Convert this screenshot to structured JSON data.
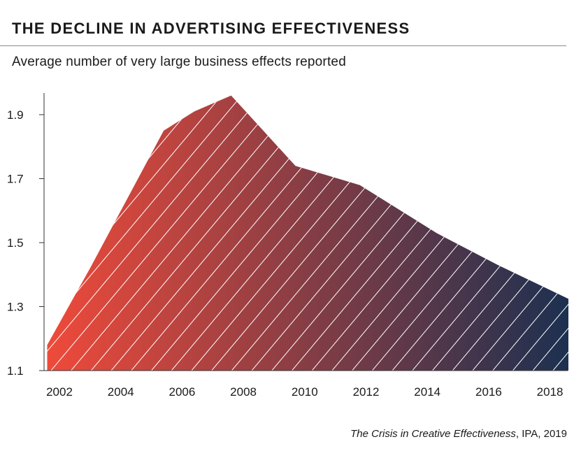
{
  "header": {
    "title": "THE DECLINE IN ADVERTISING EFFECTIVENESS",
    "subtitle": "Average number of very large business effects reported"
  },
  "footer": {
    "source_italic": "The Crisis in Creative Effectiveness",
    "source_rest": ", IPA, 2019"
  },
  "colors": {
    "gradient_start": "#ef4a3a",
    "gradient_end": "#1b3050",
    "hatch": "#ffffff"
  },
  "chart_data": {
    "type": "area",
    "x": [
      2001.6,
      2003,
      2005.4,
      2006.4,
      2007.6,
      2009.7,
      2011.8,
      2014.3,
      2016.3,
      2018.7
    ],
    "values": [
      1.18,
      1.42,
      1.85,
      1.91,
      1.96,
      1.74,
      1.68,
      1.53,
      1.43,
      1.32
    ],
    "xticks": [
      "2002",
      "2004",
      "2006",
      "2008",
      "2010",
      "2012",
      "2014",
      "2016",
      "2018"
    ],
    "yticks": [
      "1.1",
      "1.3",
      "1.5",
      "1.7",
      "1.9"
    ],
    "ylim": [
      1.1,
      1.97
    ],
    "xlim": [
      2001.6,
      2018.7
    ],
    "fill": "left-to-right gradient with diagonal white hatching",
    "grid": false
  }
}
